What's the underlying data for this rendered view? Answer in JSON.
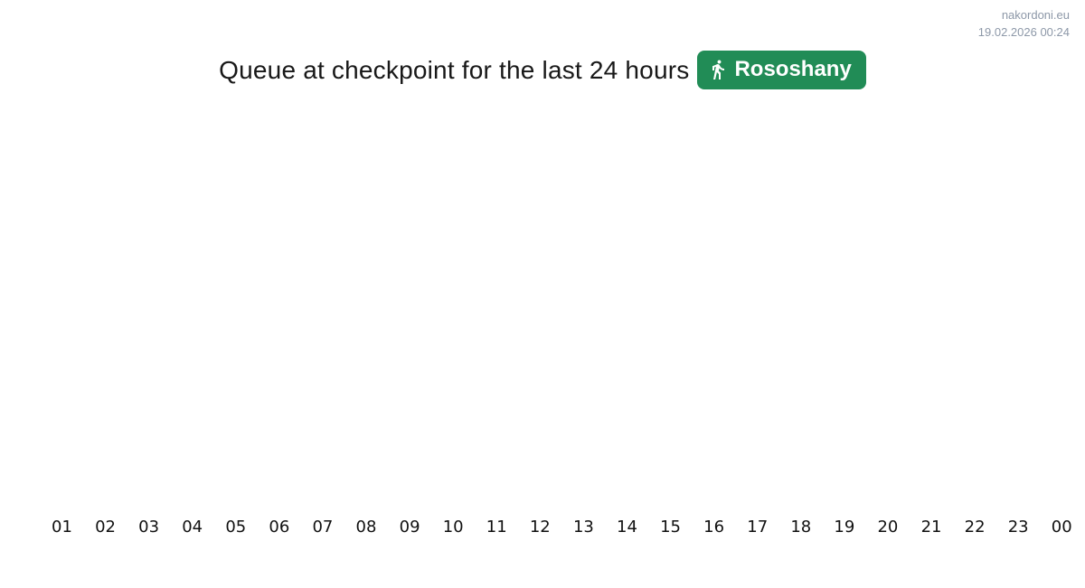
{
  "site": {
    "domain": "nakordoni.eu",
    "timestamp": "19.02.2026 00:24",
    "watermark_color": "#8d98a8"
  },
  "header": {
    "title": "Queue at checkpoint for the last 24 hours",
    "checkpoint_badge": {
      "label": "Rososhany",
      "icon": "pedestrian-icon",
      "background": "#218c56",
      "text_color": "#ffffff"
    }
  },
  "chart_data": {
    "type": "bar",
    "title": "Queue at checkpoint for the last 24 hours",
    "categories": [
      "01",
      "02",
      "03",
      "04",
      "05",
      "06",
      "07",
      "08",
      "09",
      "10",
      "11",
      "12",
      "13",
      "14",
      "15",
      "16",
      "17",
      "18",
      "19",
      "20",
      "21",
      "22",
      "23",
      "00"
    ],
    "series": [],
    "xlabel": "",
    "ylabel": "",
    "grid": false,
    "legend": "none",
    "plot_area_empty": true
  }
}
